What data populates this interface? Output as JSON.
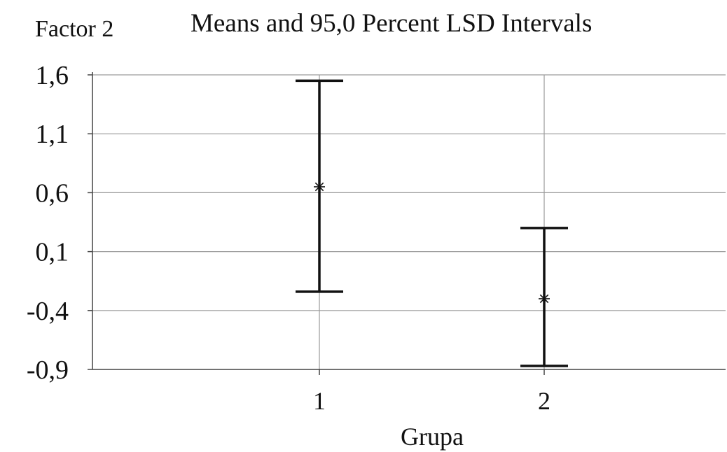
{
  "chart_data": {
    "type": "error_bar",
    "ylabel": "Factor 2",
    "title": "Means and 95,0 Percent LSD Intervals",
    "xlabel": "Grupa",
    "categories": [
      "1",
      "2"
    ],
    "series": [
      {
        "means": [
          0.65,
          -0.3
        ],
        "lower": [
          -0.24,
          -0.87
        ],
        "upper": [
          1.55,
          0.3
        ]
      }
    ],
    "ylim": [
      -0.9,
      1.6
    ],
    "yticks": [
      1.6,
      1.1,
      0.6,
      0.1,
      -0.4,
      -0.9
    ],
    "ytick_labels": [
      "1,6",
      "1,1",
      "0,6",
      "0,1",
      "-0,4",
      "-0,9"
    ],
    "grid": true
  }
}
